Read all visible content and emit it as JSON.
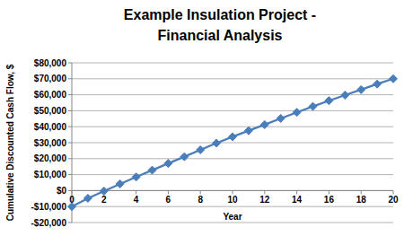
{
  "chart_data": {
    "type": "line",
    "title": "Example Insulation Project -\nFinancial Analysis",
    "x_label": "Year",
    "y_label": "Cumulative Discounted Cash Flow, $",
    "x": [
      0,
      1,
      2,
      3,
      4,
      5,
      6,
      7,
      8,
      9,
      10,
      11,
      12,
      13,
      14,
      15,
      16,
      17,
      18,
      19,
      20
    ],
    "values": [
      -10000,
      -4800,
      -300,
      4200,
      8500,
      12800,
      17000,
      21200,
      25500,
      29700,
      33700,
      37500,
      41300,
      45200,
      49000,
      52700,
      56300,
      59800,
      63200,
      66700,
      70000
    ],
    "color": "#4a7ebb",
    "marker": "diamond",
    "line_style": "solid",
    "xlim": [
      0,
      20
    ],
    "xticks": [
      0,
      2,
      4,
      6,
      8,
      10,
      12,
      14,
      16,
      18,
      20
    ],
    "ylim": [
      -20000,
      80000
    ],
    "yticks": [
      {
        "value": -20000,
        "label": "-$20,000"
      },
      {
        "value": -10000,
        "label": "-$10,000"
      },
      {
        "value": 0,
        "label": "$0"
      },
      {
        "value": 10000,
        "label": "$10,000"
      },
      {
        "value": 20000,
        "label": "$20,000"
      },
      {
        "value": 30000,
        "label": "$30,000"
      },
      {
        "value": 40000,
        "label": "$40,000"
      },
      {
        "value": 50000,
        "label": "$50,000"
      },
      {
        "value": 60000,
        "label": "$60,000"
      },
      {
        "value": 70000,
        "label": "$70,000"
      },
      {
        "value": 80000,
        "label": "$80,000"
      }
    ],
    "grid": true
  }
}
